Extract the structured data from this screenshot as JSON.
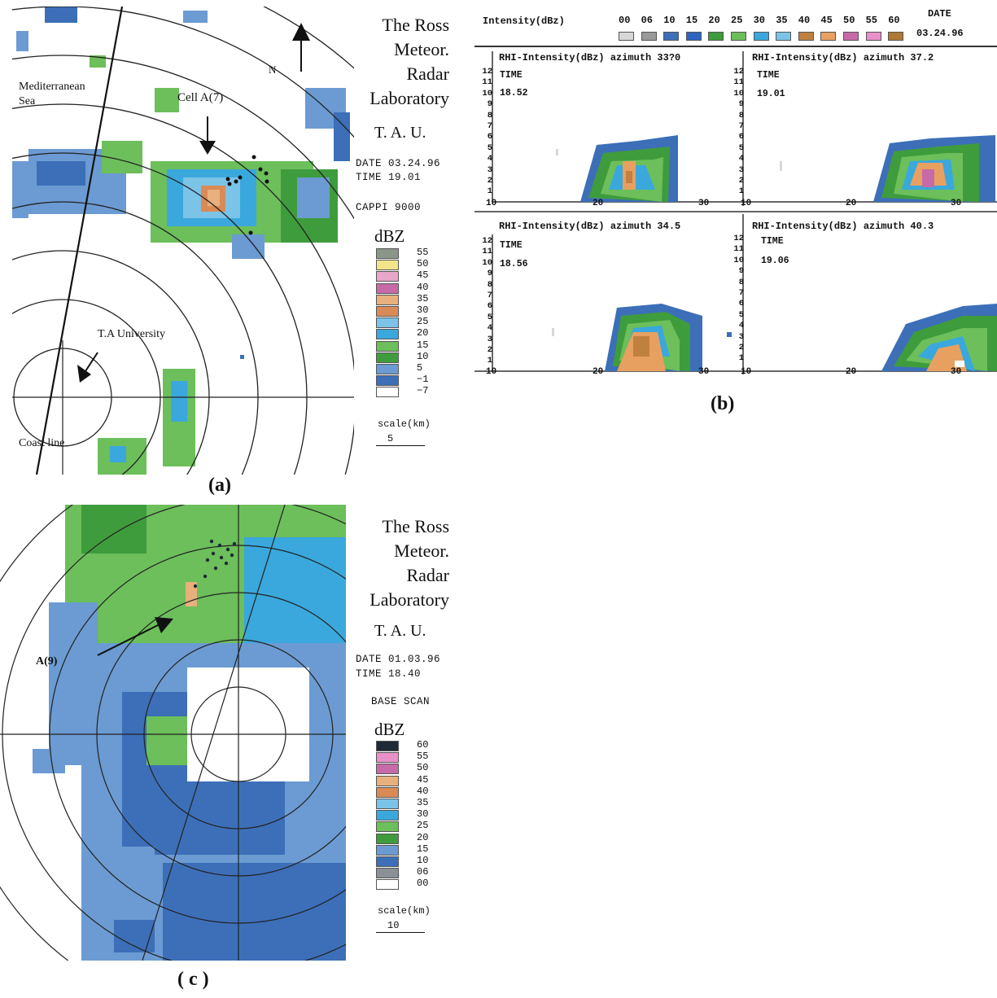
{
  "panel_a": {
    "lab_lines": [
      "The  Ross",
      "Meteor.",
      "Radar",
      "Laboratory"
    ],
    "tau": "T. A. U.",
    "date": "DATE 03.24.96",
    "time": "TIME  19.01",
    "scan": "CAPPI 9000",
    "dbz_title": "dBZ",
    "legend": [
      {
        "label": "55",
        "color": "#8a9688"
      },
      {
        "label": "50",
        "color": "#f2e48a"
      },
      {
        "label": "45",
        "color": "#e8a6c8"
      },
      {
        "label": "40",
        "color": "#c76aa8"
      },
      {
        "label": "35",
        "color": "#e8b07c"
      },
      {
        "label": "30",
        "color": "#d98a55"
      },
      {
        "label": "25",
        "color": "#7cc3e8"
      },
      {
        "label": "20",
        "color": "#3aa8dc"
      },
      {
        "label": "15",
        "color": "#6cbf5a"
      },
      {
        "label": "10",
        "color": "#3f9c3c"
      },
      {
        "label": "5",
        "color": "#6b9bd2"
      },
      {
        "label": "−1",
        "color": "#3c6fb8"
      },
      {
        "label": "−7",
        "color": "#ffffff"
      }
    ],
    "scale_label": "scale(km)",
    "scale_value": "5",
    "labels": {
      "sea": "Mediterranean\nSea",
      "cell": "Cell A(7)",
      "north": "N",
      "university": "T.A University",
      "coast": "Coast  line"
    },
    "figure_label": "(a)"
  },
  "panel_b": {
    "intensity_label": "Intensity(dBz)",
    "date_label": "DATE",
    "date_value": "03.24.96",
    "scale": [
      {
        "label": "00",
        "color": "#d8d8d8"
      },
      {
        "label": "06",
        "color": "#9a9a9a"
      },
      {
        "label": "10",
        "color": "#3c6fb8"
      },
      {
        "label": "15",
        "color": "#2f64c0"
      },
      {
        "label": "20",
        "color": "#3f9c3c"
      },
      {
        "label": "25",
        "color": "#6cbf5a"
      },
      {
        "label": "30",
        "color": "#3aa8dc"
      },
      {
        "label": "35",
        "color": "#7cc3e8"
      },
      {
        "label": "40",
        "color": "#c0803f"
      },
      {
        "label": "45",
        "color": "#e8a060"
      },
      {
        "label": "50",
        "color": "#c76aa8"
      },
      {
        "label": "55",
        "color": "#e890c8"
      },
      {
        "label": "60",
        "color": "#b07838"
      }
    ],
    "rhi": [
      {
        "title": "RHI-Intensity(dBz) azimuth 33?0",
        "time_label": "TIME",
        "time": "18.52"
      },
      {
        "title": "RHI-Intensity(dBz) azimuth 37.2",
        "time_label": "TIME",
        "time": "19.01"
      },
      {
        "title": "RHI-Intensity(dBz) azimuth 34.5",
        "time_label": "TIME",
        "time": "18.56"
      },
      {
        "title": "RHI-Intensity(dBz) azimuth 40.3",
        "time_label": "TIME",
        "time": "19.06"
      }
    ],
    "y_ticks": [
      "12",
      "11",
      "10",
      "9",
      "8",
      "7",
      "6",
      "5",
      "4",
      "3",
      "2",
      "1"
    ],
    "x_ticks": [
      "10",
      "20",
      "30"
    ],
    "figure_label": "(b)"
  },
  "panel_c": {
    "lab_lines": [
      "The  Ross",
      "Meteor.",
      "Radar",
      "Laboratory"
    ],
    "tau": "T. A. U.",
    "date": "DATE 01.03.96",
    "time": "TIME  18.40",
    "scan": "BASE SCAN",
    "dbz_title": "dBZ",
    "legend": [
      {
        "label": "60",
        "color": "#1e2a36"
      },
      {
        "label": "55",
        "color": "#e890c8"
      },
      {
        "label": "50",
        "color": "#c76aa8"
      },
      {
        "label": "45",
        "color": "#e8b07c"
      },
      {
        "label": "40",
        "color": "#d98a55"
      },
      {
        "label": "35",
        "color": "#7cc3e8"
      },
      {
        "label": "30",
        "color": "#3aa8dc"
      },
      {
        "label": "25",
        "color": "#6cbf5a"
      },
      {
        "label": "20",
        "color": "#3f9c3c"
      },
      {
        "label": "15",
        "color": "#6b9bd2"
      },
      {
        "label": "10",
        "color": "#3c6fb8"
      },
      {
        "label": "06",
        "color": "#8a9096"
      },
      {
        "label": "00",
        "color": "#ffffff"
      }
    ],
    "scale_label": "scale(km)",
    "scale_value": "10",
    "labels": {
      "cell": "A(9)"
    },
    "figure_label": "( c )"
  }
}
